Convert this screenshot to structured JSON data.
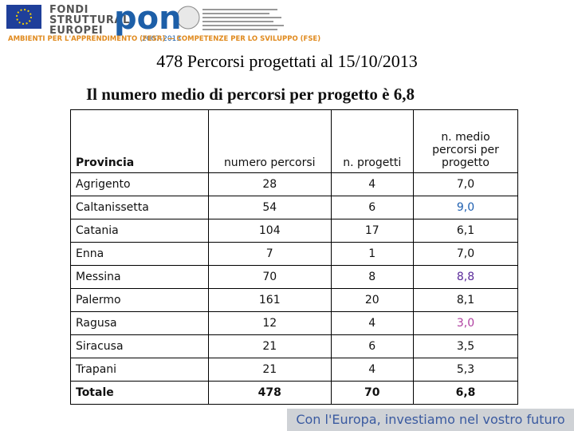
{
  "header": {
    "logo_text": [
      "FONDI",
      "STRUTTURALI",
      "EUROPEI"
    ],
    "pon": "pon",
    "pon_years": "2007-2013",
    "tagline_left": "AMBIENTI PER L'APPRENDIMENTO (FESR)",
    "tagline_sep": "—",
    "tagline_right": "COMPETENZE PER LO SVILUPPO (FSE)"
  },
  "title": "478 Percorsi progettati al 15/10/2013",
  "subtitle": "Il numero medio di percorsi per progetto è 6,8",
  "table": {
    "columns": [
      "Provincia",
      "numero percorsi",
      "n. progetti",
      "n. medio percorsi per progetto"
    ],
    "rows": [
      [
        "Agrigento",
        "28",
        "4",
        "7,0"
      ],
      [
        "Caltanissetta",
        "54",
        "6",
        "9,0"
      ],
      [
        "Catania",
        "104",
        "17",
        "6,1"
      ],
      [
        "Enna",
        "7",
        "1",
        "7,0"
      ],
      [
        "Messina",
        "70",
        "8",
        "8,8"
      ],
      [
        "Palermo",
        "161",
        "20",
        "8,1"
      ],
      [
        "Ragusa",
        "12",
        "4",
        "3,0"
      ],
      [
        "Siracusa",
        "21",
        "6",
        "3,5"
      ],
      [
        "Trapani",
        "21",
        "4",
        "5,3"
      ],
      [
        "Totale",
        "478",
        "70",
        "6,8"
      ]
    ]
  },
  "footer": "Con l'Europa, investiamo nel vostro futuro"
}
